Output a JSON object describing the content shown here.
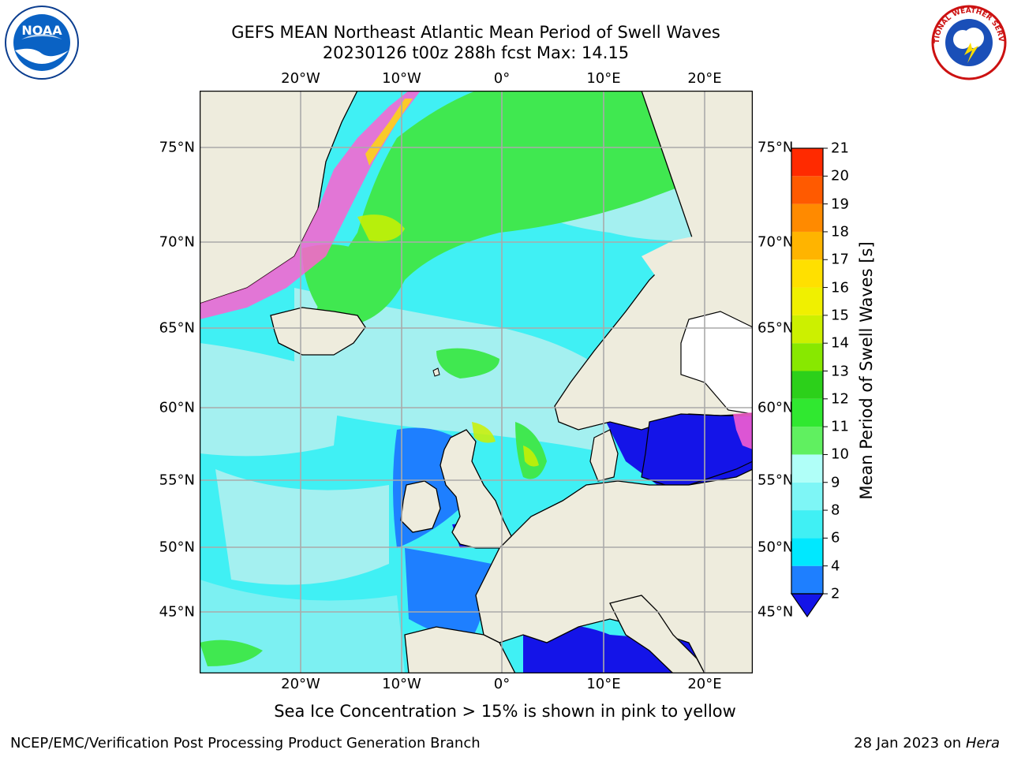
{
  "header": {
    "title_line1": "GEFS MEAN Northeast Atlantic Mean Period of Swell Waves",
    "title_line2": "20230126 t00z 288h fcst   Max: 14.15"
  },
  "map": {
    "projection": "plate-carree",
    "lon_range": [
      -30,
      25
    ],
    "lat_range": [
      41,
      78
    ],
    "lon_labels": [
      "20°W",
      "10°W",
      "0°",
      "10°E",
      "20°E"
    ],
    "lat_labels": [
      "75°N",
      "70°N",
      "65°N",
      "60°N",
      "55°N",
      "50°N",
      "45°N"
    ],
    "colors": {
      "land": "#EEECDD",
      "ocean_light": "#B0F0F0",
      "ocean_cyan": "#40F0F4",
      "ocean_green": "#40E850",
      "ocean_blue": "#1E7FFF",
      "ocean_deep": "#1414E8",
      "ice": "#FF60D0",
      "grid": "#AAAAAA"
    }
  },
  "colorbar": {
    "title": "Mean Period of Swell Waves [s]",
    "ticks": [
      "2",
      "4",
      "6",
      "8",
      "9",
      "10",
      "11",
      "12",
      "13",
      "14",
      "15",
      "16",
      "17",
      "18",
      "19",
      "20",
      "21"
    ],
    "colors": [
      "#1414E8",
      "#1E7FFF",
      "#00E8FF",
      "#40F0F4",
      "#7EF6F6",
      "#B0FFF8",
      "#60F060",
      "#30E830",
      "#2CD01A",
      "#88E800",
      "#CCF000",
      "#F0F000",
      "#FFE000",
      "#FFB400",
      "#FF8A00",
      "#FF5A00",
      "#FF2A00",
      "#FF0000"
    ]
  },
  "notes": {
    "ice": "Sea Ice Concentration > 15% is shown in pink to yellow"
  },
  "footer": {
    "left": "NCEP/EMC/Verification Post Processing Product Generation Branch",
    "right_date": "28 Jan 2023 on ",
    "right_machine": "Hera"
  },
  "logos": {
    "left": "noaa-logo",
    "right": "national-weather-service-logo",
    "left_text": "NOAA",
    "right_text": "NATIONAL WEATHER SERVICE"
  }
}
